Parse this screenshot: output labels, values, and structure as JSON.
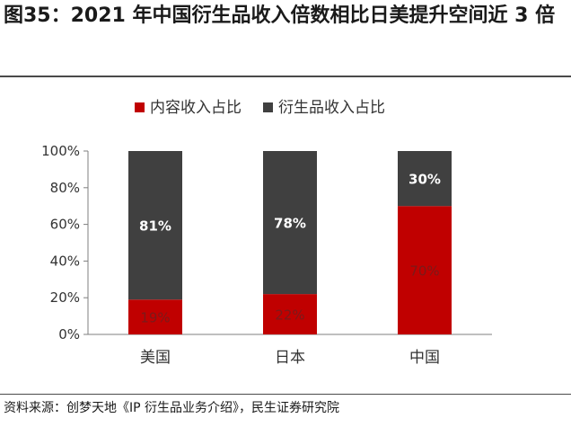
{
  "header": {
    "title": "图35：2021 年中国衍生品收入倍数相比日美提升空间近 3 倍"
  },
  "footer": {
    "source": "资料来源：创梦天地《IP 衍生品业务介绍》，民生证券研究院"
  },
  "colors": {
    "content": "#c00000",
    "derivative": "#404040",
    "content_label": "#7a1a1a",
    "derivative_label": "#ffffff"
  },
  "chart_data": {
    "type": "bar",
    "stacked": true,
    "categories": [
      "美国",
      "日本",
      "中国"
    ],
    "series": [
      {
        "name": "内容收入占比",
        "values": [
          19,
          22,
          70
        ],
        "labels": [
          "19%",
          "22%",
          "70%"
        ]
      },
      {
        "name": "衍生品收入占比",
        "values": [
          81,
          78,
          30
        ],
        "labels": [
          "81%",
          "78%",
          "30%"
        ]
      }
    ],
    "ylim": [
      0,
      100
    ],
    "yticks": [
      "0%",
      "20%",
      "40%",
      "60%",
      "80%",
      "100%"
    ],
    "legend_position": "top",
    "grid": false
  }
}
